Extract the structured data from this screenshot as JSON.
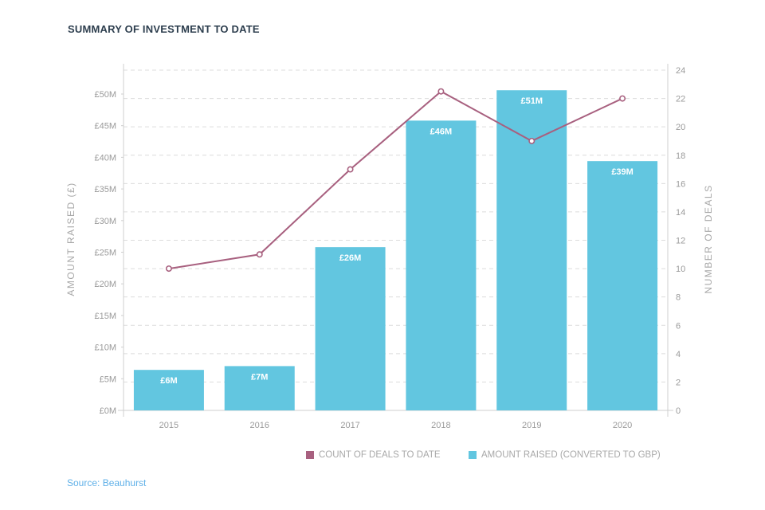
{
  "chart_data": {
    "type": "bar",
    "title": "SUMMARY OF INVESTMENT TO DATE",
    "categories": [
      "2015",
      "2016",
      "2017",
      "2018",
      "2019",
      "2020"
    ],
    "series": [
      {
        "name": "AMOUNT RAISED (CONVERTED TO GBP)",
        "type": "bar",
        "axis": "left",
        "color": "#62c6e0",
        "values": [
          6.4,
          7,
          25.8,
          45.8,
          50.6,
          39.4
        ],
        "labels": [
          "£6M",
          "£7M",
          "£26M",
          "£46M",
          "£51M",
          "£39M"
        ]
      },
      {
        "name": "COUNT OF DEALS TO DATE",
        "type": "line",
        "axis": "right",
        "color": "#a8607f",
        "values": [
          10,
          11,
          17,
          22.5,
          19,
          22
        ]
      }
    ],
    "ylabel": "AMOUNT RAISED (£)",
    "y2label": "NUMBER OF DEALS",
    "ylim": [
      0,
      55
    ],
    "y2lim": [
      0,
      24
    ],
    "yticks": [
      "£0M",
      "£5M",
      "£10M",
      "£15M",
      "£20M",
      "£25M",
      "£30M",
      "£35M",
      "£40M",
      "£45M",
      "£50M"
    ],
    "y2ticks": [
      "0",
      "2",
      "4",
      "6",
      "8",
      "10",
      "12",
      "14",
      "16",
      "18",
      "20",
      "22",
      "24"
    ],
    "grid": true,
    "legend_position": "bottom-right"
  },
  "source": "Source: Beauhurst"
}
